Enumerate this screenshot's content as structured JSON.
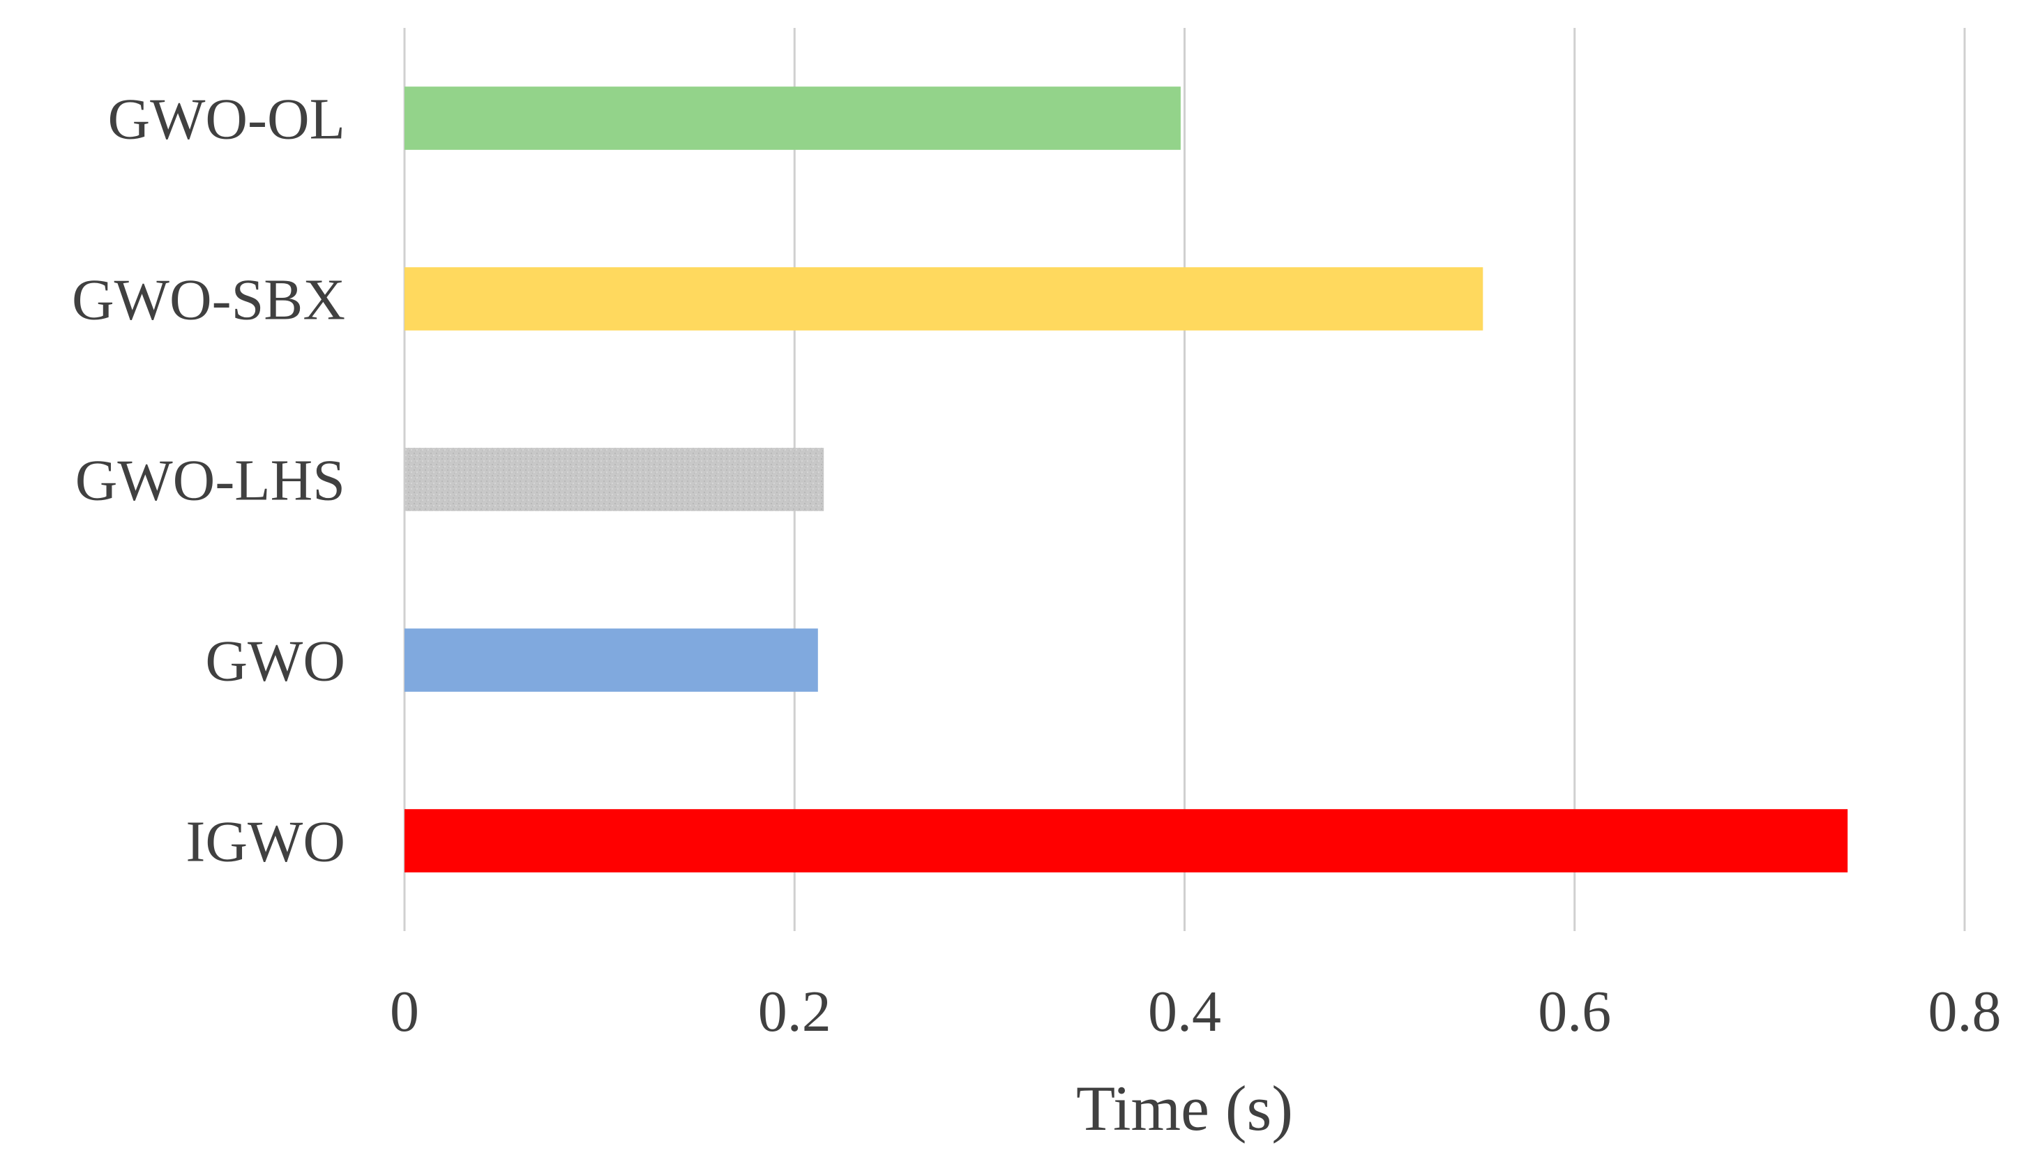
{
  "chart_data": {
    "type": "bar",
    "orientation": "horizontal",
    "categories": [
      "GWO-OL",
      "GWO-SBX",
      "GWO-LHS",
      "GWO",
      "IGWO"
    ],
    "values": [
      0.398,
      0.553,
      0.215,
      0.212,
      0.74
    ],
    "colors": [
      "#93d38a",
      "#ffd95e",
      "#c8c8c8",
      "#80a9de",
      "#ff0000"
    ],
    "title": "",
    "xlabel": "Time (s)",
    "ylabel": "",
    "xlim": [
      0,
      0.8
    ],
    "xticks": [
      "0",
      "0.2",
      "0.4",
      "0.6",
      "0.8"
    ],
    "grid": "vertical",
    "gridline_color": "#d0d0d0",
    "legend": "none"
  }
}
